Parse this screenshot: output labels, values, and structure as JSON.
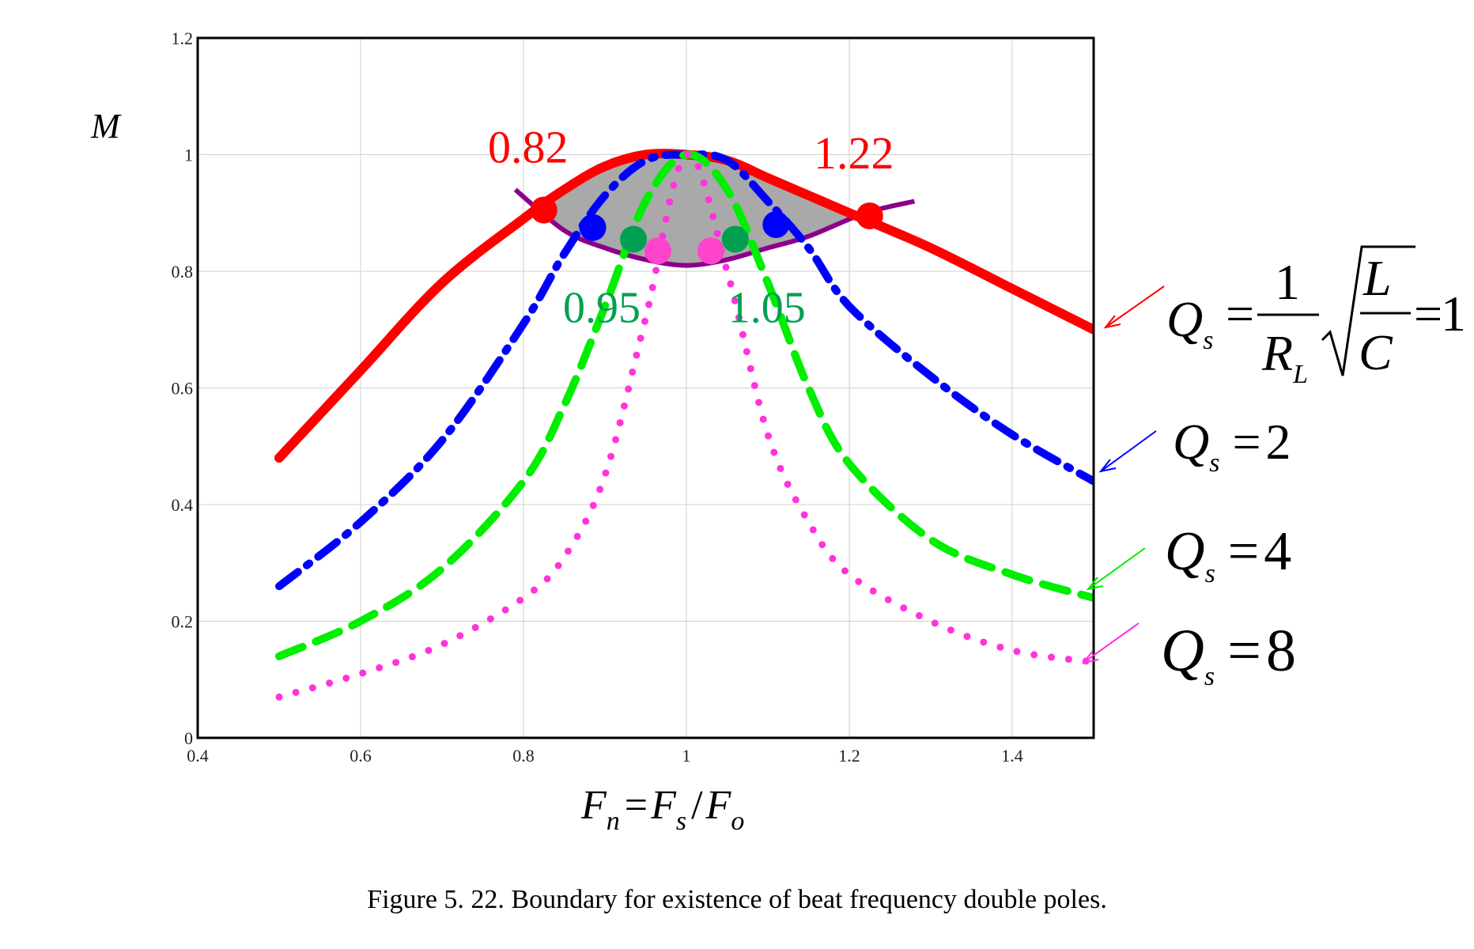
{
  "figure": {
    "caption": "Figure 5. 22. Boundary for existence of beat frequency double poles."
  },
  "chart_data": {
    "type": "line",
    "title": "",
    "xlabel": "F_n = F_s / F_o",
    "ylabel": "M",
    "xlim": [
      0.4,
      1.5
    ],
    "ylim": [
      0,
      1.2
    ],
    "grid": true,
    "xticks": [
      "0.4",
      "0.6",
      "0.8",
      "1",
      "1.2",
      "1.4"
    ],
    "yticks": [
      "0",
      "0.2",
      "0.4",
      "0.6",
      "0.8",
      "1",
      "1.2"
    ],
    "x": [
      0.5,
      0.6,
      0.7,
      0.8,
      0.85,
      0.9,
      0.95,
      1.0,
      1.05,
      1.1,
      1.15,
      1.2,
      1.3,
      1.4,
      1.5
    ],
    "series": [
      {
        "legend": "Qs = 1/R_L √(L/C) = 1",
        "Q": 1,
        "color": "#ff0000",
        "style": "solid",
        "values": [
          0.48,
          0.63,
          0.78,
          0.89,
          0.94,
          0.98,
          1.0,
          1.0,
          0.99,
          0.96,
          0.93,
          0.9,
          0.84,
          0.77,
          0.7
        ]
      },
      {
        "legend": "Qs = 2",
        "Q": 2,
        "color": "#0000ff",
        "style": "dashdot",
        "values": [
          0.26,
          0.37,
          0.51,
          0.71,
          0.83,
          0.93,
          0.99,
          1.0,
          0.99,
          0.92,
          0.84,
          0.74,
          0.62,
          0.52,
          0.44
        ]
      },
      {
        "legend": "Qs = 4",
        "Q": 4,
        "color": "#00ee00",
        "style": "dashed",
        "values": [
          0.14,
          0.2,
          0.29,
          0.44,
          0.57,
          0.74,
          0.92,
          1.0,
          0.94,
          0.78,
          0.6,
          0.47,
          0.34,
          0.28,
          0.24
        ]
      },
      {
        "legend": "Qs = 8",
        "Q": 8,
        "color": "#ff33dd",
        "style": "dotted",
        "values": [
          0.07,
          0.11,
          0.16,
          0.24,
          0.31,
          0.45,
          0.72,
          1.0,
          0.8,
          0.52,
          0.37,
          0.28,
          0.2,
          0.15,
          0.13
        ]
      }
    ],
    "boundary": {
      "color": "#8b008b",
      "x": [
        0.79,
        0.85,
        0.9,
        0.95,
        1.0,
        1.05,
        1.1,
        1.15,
        1.22,
        1.28
      ],
      "y": [
        0.94,
        0.87,
        0.84,
        0.82,
        0.81,
        0.82,
        0.84,
        0.86,
        0.9,
        0.92
      ]
    },
    "shaded_region": {
      "color": "#a9a9a9"
    },
    "markers": [
      {
        "x": 0.825,
        "y": 0.905,
        "color": "#ff0000",
        "label": "0.82",
        "label_color": "#ff0000"
      },
      {
        "x": 1.225,
        "y": 0.895,
        "color": "#ff0000",
        "label": "1.22",
        "label_color": "#ff0000"
      },
      {
        "x": 0.885,
        "y": 0.875,
        "color": "#0000ff"
      },
      {
        "x": 1.11,
        "y": 0.88,
        "color": "#0000ff"
      },
      {
        "x": 0.935,
        "y": 0.855,
        "color": "#00a050",
        "label": "0.95",
        "label_color": "#00a050"
      },
      {
        "x": 1.06,
        "y": 0.855,
        "color": "#00a050",
        "label": "1.05",
        "label_color": "#00a050"
      },
      {
        "x": 0.965,
        "y": 0.835,
        "color": "#ff44cc"
      },
      {
        "x": 1.03,
        "y": 0.835,
        "color": "#ff44cc"
      }
    ]
  },
  "legend": {
    "q1": {
      "Q": "Q",
      "s": "s",
      "eq": "=",
      "one": "1",
      "R": "R",
      "L_sub": "L",
      "L": "L",
      "C": "C",
      "eq2": "=",
      "val": "1"
    },
    "q2": {
      "Q": "Q",
      "s": "s",
      "eq": "=",
      "val": "2"
    },
    "q4": {
      "Q": "Q",
      "s": "s",
      "eq": "=",
      "val": "4"
    },
    "q8": {
      "Q": "Q",
      "s": "s",
      "eq": "=",
      "val": "8"
    }
  },
  "axis_labels": {
    "y": "M",
    "x": {
      "F1": "F",
      "n": "n",
      "eq": "=",
      "F2": "F",
      "s": "s",
      "slash": "/",
      "F3": "F",
      "o": "o"
    }
  }
}
